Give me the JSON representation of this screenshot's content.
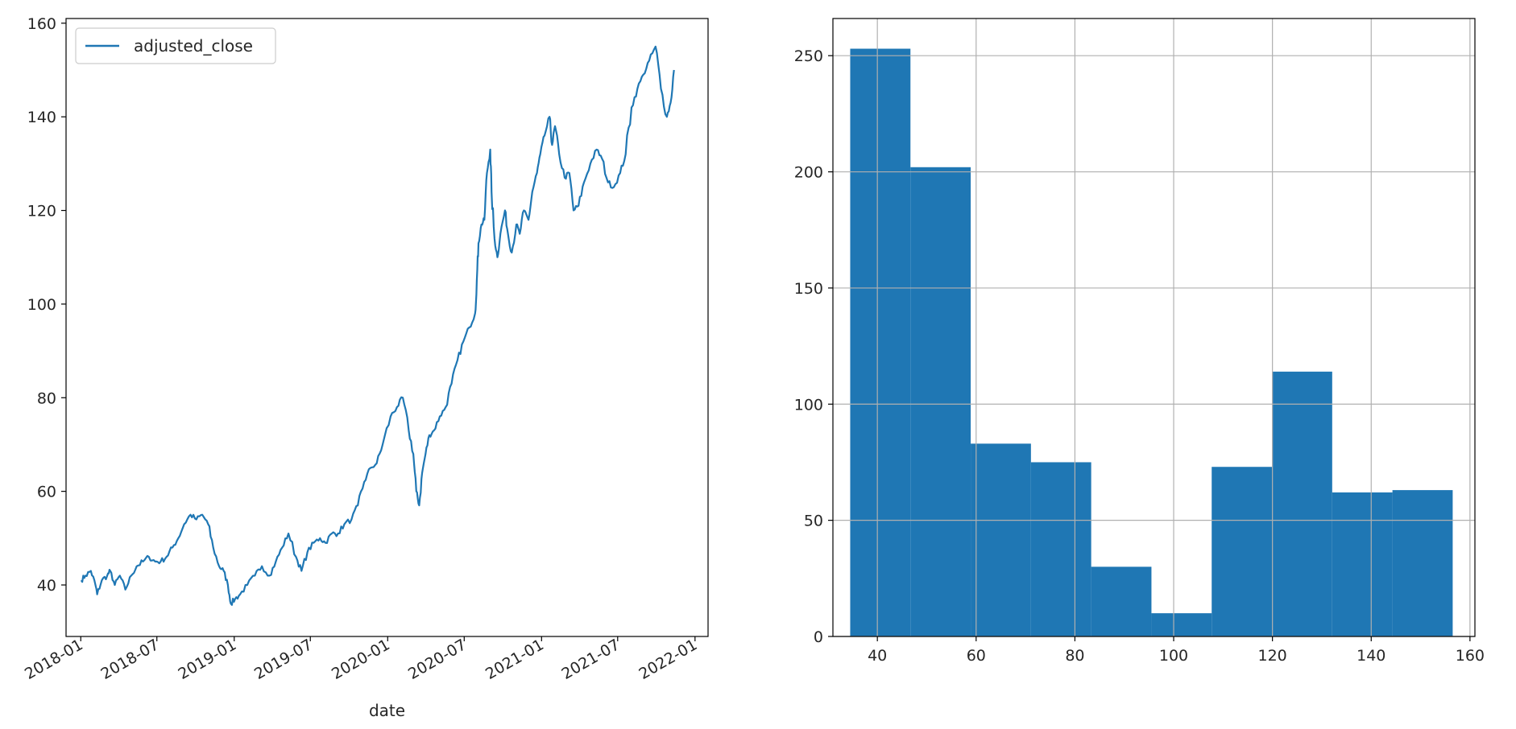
{
  "colors": {
    "series": "#1f77b4",
    "axes": "#000000",
    "grid": "#b0b0b0",
    "text": "#262626",
    "background": "#ffffff"
  },
  "chart_data": [
    {
      "type": "line",
      "xlabel": "date",
      "ylabel": "",
      "legend": {
        "placement": "upper-left",
        "entries": [
          "adjusted_close"
        ]
      },
      "grid": false,
      "xlim": [
        "2017-11-27",
        "2022-02-01"
      ],
      "ylim": [
        29,
        161
      ],
      "x_ticks": [
        "2018-01",
        "2018-07",
        "2019-01",
        "2019-07",
        "2020-01",
        "2020-07",
        "2021-01",
        "2021-07",
        "2022-01"
      ],
      "y_ticks": [
        40,
        60,
        80,
        100,
        120,
        140,
        160
      ],
      "series": [
        {
          "name": "adjusted_close",
          "x": [
            "2018-01-02",
            "2018-01-12",
            "2018-01-25",
            "2018-02-05",
            "2018-02-09",
            "2018-02-20",
            "2018-03-05",
            "2018-03-12",
            "2018-03-23",
            "2018-04-04",
            "2018-04-17",
            "2018-05-01",
            "2018-05-14",
            "2018-05-29",
            "2018-06-12",
            "2018-06-27",
            "2018-07-10",
            "2018-07-24",
            "2018-08-07",
            "2018-08-21",
            "2018-09-04",
            "2018-09-19",
            "2018-10-03",
            "2018-10-17",
            "2018-10-31",
            "2018-11-12",
            "2018-11-26",
            "2018-12-07",
            "2018-12-17",
            "2018-12-24",
            "2019-01-03",
            "2019-01-15",
            "2019-02-01",
            "2019-02-19",
            "2019-03-08",
            "2019-03-26",
            "2019-04-10",
            "2019-04-25",
            "2019-05-10",
            "2019-05-28",
            "2019-06-10",
            "2019-06-24",
            "2019-07-09",
            "2019-07-24",
            "2019-08-06",
            "2019-08-21",
            "2019-09-05",
            "2019-09-20",
            "2019-10-07",
            "2019-10-22",
            "2019-11-06",
            "2019-11-21",
            "2019-12-06",
            "2019-12-20",
            "2020-01-08",
            "2020-01-23",
            "2020-02-06",
            "2020-02-20",
            "2020-03-02",
            "2020-03-09",
            "2020-03-16",
            "2020-03-23",
            "2020-03-31",
            "2020-04-09",
            "2020-04-20",
            "2020-05-04",
            "2020-05-18",
            "2020-06-01",
            "2020-06-15",
            "2020-06-29",
            "2020-07-13",
            "2020-07-27",
            "2020-07-31",
            "2020-08-04",
            "2020-08-11",
            "2020-08-18",
            "2020-08-24",
            "2020-09-01",
            "2020-09-04",
            "2020-09-11",
            "2020-09-18",
            "2020-09-25",
            "2020-10-06",
            "2020-10-13",
            "2020-10-22",
            "2020-11-02",
            "2020-11-10",
            "2020-11-20",
            "2020-12-01",
            "2020-12-10",
            "2020-12-21",
            "2020-12-29",
            "2021-01-08",
            "2021-01-20",
            "2021-01-26",
            "2021-02-02",
            "2021-02-12",
            "2021-02-25",
            "2021-03-08",
            "2021-03-18",
            "2021-03-30",
            "2021-04-12",
            "2021-04-27",
            "2021-05-12",
            "2021-05-25",
            "2021-06-08",
            "2021-06-22",
            "2021-07-07",
            "2021-07-20",
            "2021-08-03",
            "2021-08-17",
            "2021-08-31",
            "2021-09-14",
            "2021-09-29",
            "2021-10-12",
            "2021-10-26",
            "2021-11-04",
            "2021-11-12"
          ],
          "y": [
            41,
            42,
            43,
            40,
            38,
            41,
            42,
            43,
            40,
            42,
            39,
            42,
            44,
            45,
            46,
            45,
            45,
            46,
            48,
            50,
            53,
            55,
            54,
            55,
            53,
            48,
            44,
            43,
            40,
            36,
            37,
            38,
            40,
            42,
            44,
            42,
            45,
            48,
            51,
            46,
            43,
            47,
            49,
            50,
            49,
            51,
            51,
            53,
            54,
            57,
            62,
            65,
            66,
            70,
            76,
            78,
            80,
            73,
            68,
            60,
            57,
            64,
            68,
            72,
            73,
            76,
            78,
            83,
            88,
            92,
            95,
            98,
            105,
            113,
            117,
            118,
            128,
            133,
            124,
            114,
            110,
            115,
            120,
            115,
            111,
            117,
            115,
            120,
            118,
            124,
            128,
            132,
            136,
            140,
            134,
            138,
            132,
            127,
            128,
            120,
            121,
            126,
            130,
            133,
            131,
            126,
            125,
            128,
            132,
            142,
            146,
            149,
            152,
            155,
            146,
            140,
            143,
            150
          ]
        }
      ]
    },
    {
      "type": "bar",
      "subtype": "histogram",
      "xlabel": "",
      "ylabel": "",
      "grid": true,
      "xlim": [
        31,
        161
      ],
      "ylim": [
        0,
        266
      ],
      "x_ticks": [
        40,
        60,
        80,
        100,
        120,
        140,
        160
      ],
      "y_ticks": [
        0,
        50,
        100,
        150,
        200,
        250
      ],
      "bin_edges": [
        34.5,
        46.7,
        58.9,
        71.1,
        83.3,
        95.5,
        107.7,
        119.9,
        132.1,
        144.3,
        156.5
      ],
      "values": [
        253,
        202,
        83,
        75,
        30,
        10,
        73,
        114,
        62,
        63
      ]
    }
  ]
}
